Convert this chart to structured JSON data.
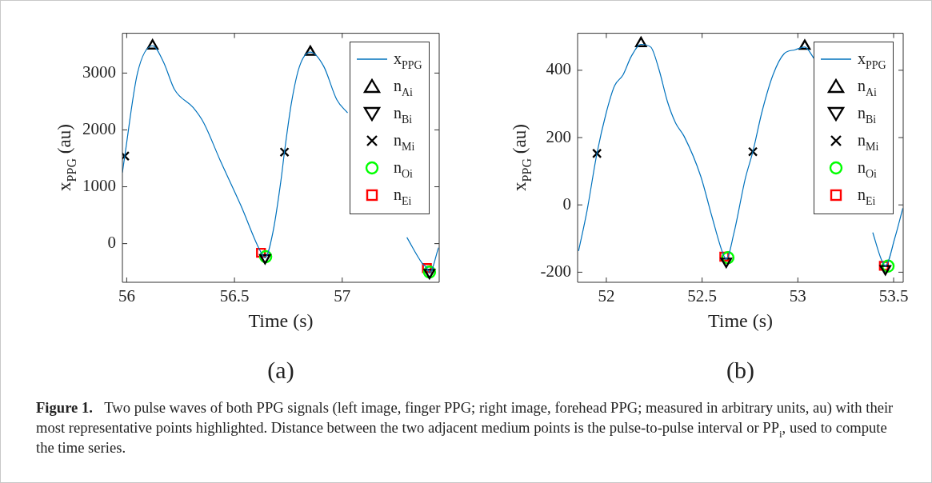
{
  "chart_data": [
    {
      "type": "line",
      "xlabel": "Time (s)",
      "ylabel": "x$_{PPG}$ (au)",
      "xlim": [
        55.98,
        57.45
      ],
      "xticks": [
        56,
        56.5,
        57
      ],
      "ylim": [
        -680,
        3700
      ],
      "yticks": [
        0,
        1000,
        2000,
        3000
      ],
      "legend": "top right",
      "annotations": [
        "(a)"
      ],
      "series": [
        {
          "name": "x$_{PPG}$",
          "type": "line",
          "marker": "none",
          "color": "#0072bd",
          "x": [
            55.98,
            55.991,
            56.05,
            56.12,
            56.17,
            56.222,
            56.309,
            56.358,
            56.432,
            56.531,
            56.617,
            56.642,
            56.679,
            56.716,
            56.732,
            56.765,
            56.802,
            56.852,
            56.914,
            56.975,
            57.025,
            57.086,
            57.15,
            57.3,
            57.37,
            57.393,
            57.405,
            57.447
          ],
          "values": [
            1250,
            1540,
            3000,
            3480,
            3200,
            2710,
            2390,
            2120,
            1480,
            660,
            -110,
            -250,
            210,
            1120,
            1610,
            2490,
            3120,
            3370,
            3120,
            2530,
            2300,
            null,
            null,
            110,
            -340,
            -430,
            -520,
            -70
          ]
        },
        {
          "name": "n$_{Ai}$",
          "type": "scatter",
          "marker": "triangle",
          "color": "#000000",
          "x": [
            56.12,
            56.852
          ],
          "values": [
            3480,
            3370
          ]
        },
        {
          "name": "n$_{Bi}$",
          "type": "scatter",
          "marker": "triangle-down",
          "color": "#000000",
          "x": [
            56.642,
            57.405
          ],
          "values": [
            -250,
            -510
          ]
        },
        {
          "name": "n$_{Mi}$",
          "type": "scatter",
          "marker": "cross",
          "color": "#000000",
          "x": [
            55.991,
            56.732
          ],
          "values": [
            1540,
            1610
          ]
        },
        {
          "name": "n$_{Oi}$",
          "type": "scatter",
          "marker": "circle",
          "color": "#00ff00",
          "x": [
            56.645,
            57.405
          ],
          "values": [
            -230,
            -500
          ]
        },
        {
          "name": "n$_{Ei}$",
          "type": "scatter",
          "marker": "square",
          "color": "#ff0000",
          "x": [
            56.623,
            57.393
          ],
          "values": [
            -160,
            -430
          ]
        }
      ]
    },
    {
      "type": "line",
      "xlabel": "Time (s)",
      "ylabel": "x$_{PPG}$ (au)",
      "xlim": [
        51.85,
        53.55
      ],
      "xticks": [
        52,
        52.5,
        53,
        53.5
      ],
      "ylim": [
        -230,
        510
      ],
      "yticks": [
        -200,
        0,
        200,
        400
      ],
      "legend": "top right",
      "annotations": [
        "(b)"
      ],
      "series": [
        {
          "name": "x$_{PPG}$",
          "type": "line",
          "marker": "none",
          "color": "#0072bd",
          "x": [
            51.855,
            51.899,
            51.951,
            52.0,
            52.043,
            52.087,
            52.13,
            52.181,
            52.232,
            52.275,
            52.319,
            52.362,
            52.406,
            52.493,
            52.551,
            52.609,
            52.626,
            52.667,
            52.725,
            52.765,
            52.812,
            52.87,
            52.928,
            52.986,
            53.036,
            53.087,
            53.128,
            53.25,
            53.391,
            53.435,
            53.457,
            53.507,
            53.548
          ],
          "values": [
            -137,
            -18,
            153,
            275,
            354,
            386,
            441,
            477,
            469,
            402,
            307,
            243,
            204,
            85,
            -34,
            -145,
            -161,
            -82,
            77,
            158,
            275,
            386,
            449,
            461,
            469,
            433,
            null,
            null,
            -82,
            -161,
            -181,
            -97,
            -10
          ]
        },
        {
          "name": "n$_{Ai}$",
          "type": "scatter",
          "marker": "triangle",
          "color": "#000000",
          "x": [
            52.181,
            53.036
          ],
          "values": [
            480,
            472
          ]
        },
        {
          "name": "n$_{Bi}$",
          "type": "scatter",
          "marker": "triangle-down",
          "color": "#000000",
          "x": [
            52.626,
            53.457
          ],
          "values": [
            -168,
            -190
          ]
        },
        {
          "name": "n$_{Mi}$",
          "type": "scatter",
          "marker": "cross",
          "color": "#000000",
          "x": [
            51.951,
            52.765
          ],
          "values": [
            153,
            158
          ]
        },
        {
          "name": "n$_{Oi}$",
          "type": "scatter",
          "marker": "circle",
          "color": "#00ff00",
          "x": [
            52.635,
            53.471
          ],
          "values": [
            -157,
            -182
          ]
        },
        {
          "name": "n$_{Ei}$",
          "type": "scatter",
          "marker": "square",
          "color": "#ff0000",
          "x": [
            52.616,
            53.449
          ],
          "values": [
            -154,
            -181
          ]
        }
      ]
    },
    {
      "type": "other",
      "annotations": [
        "Figure 1.",
        "Two pulse waves of both PPG signals (left image, finger PPG; right image, forehead PPG; measured in arbitrary units, au) with their most representative points highlighted. Distance between the two adjacent medium points is the pulse-to-pulse interval or PP$_{i}$, used to compute the time series."
      ]
    }
  ]
}
